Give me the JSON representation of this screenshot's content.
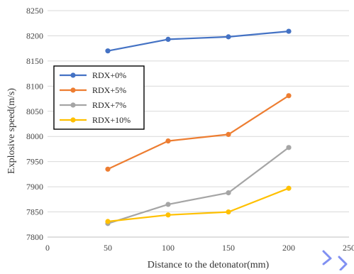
{
  "chart_data": {
    "type": "line",
    "title": "",
    "xlabel": "Distance to the detonator(mm)",
    "ylabel": "Explosive speed(m/s)",
    "xlim": [
      0,
      250
    ],
    "ylim": [
      7800,
      8250
    ],
    "xticks": [
      "0",
      "50",
      "100",
      "150",
      "200",
      "250"
    ],
    "yticks": [
      "7800",
      "7850",
      "7900",
      "7950",
      "8000",
      "8050",
      "8100",
      "8150",
      "8200",
      "8250"
    ],
    "grid": "horizontal",
    "legend_position": "left-middle",
    "x": [
      50,
      100,
      150,
      200
    ],
    "series": [
      {
        "name": "RDX+0%",
        "color": "#4472C4",
        "values": [
          8170,
          8193,
          8198,
          8209
        ]
      },
      {
        "name": "RDX+5%",
        "color": "#ED7D31",
        "values": [
          7935,
          7991,
          8004,
          8081
        ]
      },
      {
        "name": "RDX+7%",
        "color": "#A5A5A5",
        "values": [
          7827,
          7865,
          7888,
          7978
        ]
      },
      {
        "name": "RDX+10%",
        "color": "#FFC000",
        "values": [
          7831,
          7844,
          7850,
          7897
        ]
      }
    ]
  }
}
